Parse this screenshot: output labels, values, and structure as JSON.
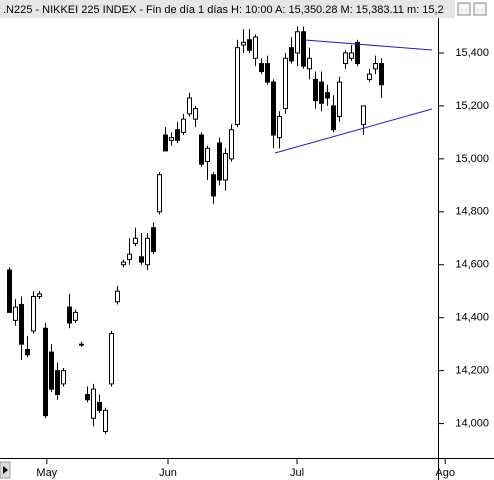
{
  "chart_data": {
    "type": "candlestick",
    "title": ".N225 - NIKKEI 225 INDEX - Fin de día 1 días  H: 10:00  A: 15,350.28  M: 15,383.11  m: 15,2",
    "open": [
      14580,
      14390,
      14450,
      14280,
      14350,
      14480,
      14360,
      14270,
      14200,
      14150,
      14440,
      14390,
      14300,
      14110,
      14020,
      14080,
      13970,
      14150,
      14460,
      14600,
      14620,
      14680,
      14630,
      14600,
      14740,
      14800,
      15090,
      15070,
      15110,
      15100,
      15170,
      15150,
      15090,
      14990,
      14940,
      15060,
      14920,
      15000,
      15130,
      15430,
      15450,
      15380,
      15360,
      15360,
      15290,
      15080,
      15190,
      15420,
      15400,
      15480,
      15340,
      15300,
      15290,
      15250,
      15200,
      15160,
      15360,
      15380,
      15440,
      15130,
      15300,
      15340,
      15360
    ],
    "high": [
      14590,
      14470,
      14480,
      14330,
      14500,
      14500,
      14380,
      14300,
      14230,
      14210,
      14490,
      14430,
      14310,
      14140,
      14150,
      14110,
      14060,
      14350,
      14520,
      14620,
      14700,
      14740,
      14720,
      14720,
      14760,
      14950,
      15120,
      15100,
      15140,
      15170,
      15250,
      15200,
      15100,
      15050,
      14950,
      15080,
      15040,
      15130,
      15450,
      15490,
      15490,
      15470,
      15380,
      15390,
      15300,
      15180,
      15400,
      15460,
      15500,
      15500,
      15420,
      15330,
      15330,
      15280,
      15240,
      15310,
      15410,
      15430,
      15450,
      15200,
      15340,
      15390,
      15380
    ],
    "low": [
      14420,
      14370,
      14240,
      14250,
      14340,
      14470,
      14020,
      14120,
      14090,
      14140,
      14360,
      14380,
      14290,
      14080,
      13990,
      14040,
      13960,
      14140,
      14450,
      14590,
      14600,
      14670,
      14600,
      14580,
      14640,
      14790,
      15030,
      15050,
      15060,
      15090,
      15160,
      15120,
      14970,
      14920,
      14830,
      14900,
      14880,
      14990,
      15120,
      15400,
      15400,
      15350,
      15320,
      15280,
      15040,
      15040,
      15170,
      15360,
      15350,
      15340,
      15300,
      15190,
      15180,
      15200,
      15100,
      15140,
      15340,
      15370,
      15350,
      15090,
      15290,
      15320,
      15230
    ],
    "close": [
      14420,
      14440,
      14300,
      14260,
      14480,
      14490,
      14030,
      14130,
      14110,
      14200,
      14380,
      14420,
      14300,
      14090,
      14130,
      14050,
      14050,
      14340,
      14500,
      14610,
      14640,
      14700,
      14610,
      14700,
      14650,
      14940,
      15030,
      15080,
      15070,
      15150,
      15230,
      15190,
      14980,
      15040,
      14860,
      14920,
      15020,
      15110,
      15420,
      15440,
      15410,
      15460,
      15330,
      15290,
      15090,
      15160,
      15380,
      15370,
      15480,
      15350,
      15380,
      15220,
      15210,
      15230,
      15110,
      15290,
      15400,
      15400,
      15360,
      15200,
      15320,
      15360,
      15280
    ],
    "xlim": [
      -1.5,
      71.5
    ],
    "xticks": [
      {
        "value": 6.3,
        "label": "May"
      },
      {
        "value": 26.5,
        "label": "Jun"
      },
      {
        "value": 48,
        "label": "Jul"
      },
      {
        "value": 72.7,
        "label": "Ago"
      }
    ],
    "ylim": [
      13870,
      15600
    ],
    "yticks": [
      {
        "value": 14000,
        "label": "14,000"
      },
      {
        "value": 14200,
        "label": "14,200"
      },
      {
        "value": 14400,
        "label": "14,400"
      },
      {
        "value": 14600,
        "label": "14,600"
      },
      {
        "value": 14800,
        "label": "14,800"
      },
      {
        "value": 15000,
        "label": "15,000"
      },
      {
        "value": 15200,
        "label": "15,200"
      },
      {
        "value": 15400,
        "label": "15,400"
      }
    ]
  }
}
